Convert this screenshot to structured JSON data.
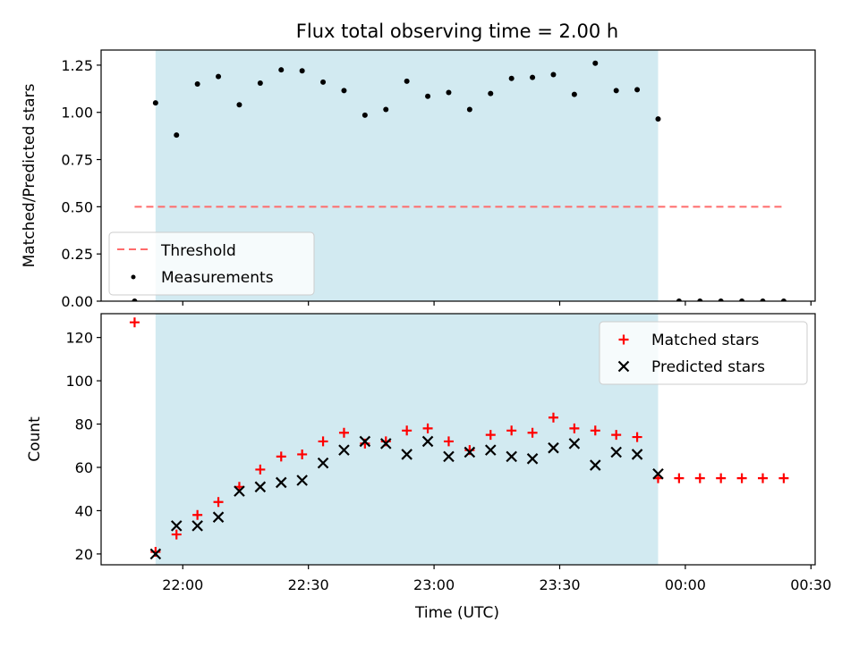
{
  "chart_data": {
    "type": "scatter",
    "title": "Flux total observing time = 2.00 h",
    "xlabel": "Time (UTC)",
    "x_ticks": [
      "22:00",
      "22:30",
      "23:00",
      "23:30",
      "00:00",
      "00:30"
    ],
    "x_tick_minutes": [
      0,
      30,
      60,
      90,
      120,
      150
    ],
    "xlim_minutes": [
      -19.5,
      151
    ],
    "observing_window_minutes": [
      -6.5,
      113.5
    ],
    "colors": {
      "window": "#add8e6",
      "threshold": "#ff6b6b",
      "matched": "#ff0000",
      "predicted": "#000000",
      "measurement": "#000000"
    },
    "panels": [
      {
        "ylabel": "Matched/Predicted stars",
        "ylim": [
          0,
          1.33
        ],
        "y_ticks": [
          "0.00",
          "0.25",
          "0.50",
          "0.75",
          "1.00",
          "1.25"
        ],
        "y_tick_values": [
          0,
          0.25,
          0.5,
          0.75,
          1.0,
          1.25
        ],
        "legend": {
          "placement": "lower-left",
          "entries": [
            "Threshold",
            "Measurements"
          ]
        },
        "series": [
          {
            "name": "Threshold",
            "kind": "dashed-line",
            "x": [
              -11.5,
              143.5
            ],
            "y": [
              0.5,
              0.5
            ]
          },
          {
            "name": "Measurements",
            "kind": "dot",
            "x": [
              -11.5,
              -6.5,
              -1.5,
              3.5,
              8.5,
              13.5,
              18.5,
              23.5,
              28.5,
              33.5,
              38.5,
              43.5,
              48.5,
              53.5,
              58.5,
              63.5,
              68.5,
              73.5,
              78.5,
              83.5,
              88.5,
              93.5,
              98.5,
              103.5,
              108.5,
              113.5,
              118.5,
              123.5,
              128.5,
              133.5,
              138.5,
              143.5
            ],
            "y": [
              0,
              1.05,
              0.88,
              1.15,
              1.19,
              1.04,
              1.155,
              1.225,
              1.22,
              1.16,
              1.115,
              0.985,
              1.015,
              1.165,
              1.085,
              1.105,
              1.015,
              1.1,
              1.18,
              1.185,
              1.2,
              1.095,
              1.26,
              1.115,
              1.12,
              0.965,
              0,
              0,
              0,
              0,
              0,
              0
            ]
          }
        ]
      },
      {
        "ylabel": "Count",
        "ylim": [
          15,
          131
        ],
        "y_ticks": [
          "20",
          "40",
          "60",
          "80",
          "100",
          "120"
        ],
        "y_tick_values": [
          20,
          40,
          60,
          80,
          100,
          120
        ],
        "legend": {
          "placement": "top-right",
          "entries": [
            "Matched stars",
            "Predicted stars"
          ]
        },
        "series": [
          {
            "name": "Matched stars",
            "kind": "plus",
            "x": [
              -11.5,
              -6.5,
              -1.5,
              3.5,
              8.5,
              13.5,
              18.5,
              23.5,
              28.5,
              33.5,
              38.5,
              43.5,
              48.5,
              53.5,
              58.5,
              63.5,
              68.5,
              73.5,
              78.5,
              83.5,
              88.5,
              93.5,
              98.5,
              103.5,
              108.5,
              113.5,
              118.5,
              123.5,
              128.5,
              133.5,
              138.5,
              143.5
            ],
            "y": [
              127,
              21,
              29,
              38,
              44,
              51,
              59,
              65,
              66,
              72,
              76,
              71,
              72,
              77,
              78,
              72,
              68,
              75,
              77,
              76,
              83,
              78,
              77,
              75,
              74,
              55,
              55,
              55,
              55,
              55,
              55,
              55
            ]
          },
          {
            "name": "Predicted stars",
            "kind": "x",
            "x": [
              -6.5,
              -1.5,
              3.5,
              8.5,
              13.5,
              18.5,
              23.5,
              28.5,
              33.5,
              38.5,
              43.5,
              48.5,
              53.5,
              58.5,
              63.5,
              68.5,
              73.5,
              78.5,
              83.5,
              88.5,
              93.5,
              98.5,
              103.5,
              108.5,
              113.5
            ],
            "y": [
              20,
              33,
              33,
              37,
              49,
              51,
              53,
              54,
              62,
              68,
              72,
              71,
              66,
              72,
              65,
              67,
              68,
              65,
              64,
              69,
              71,
              61,
              67,
              66,
              57
            ]
          }
        ]
      }
    ]
  }
}
